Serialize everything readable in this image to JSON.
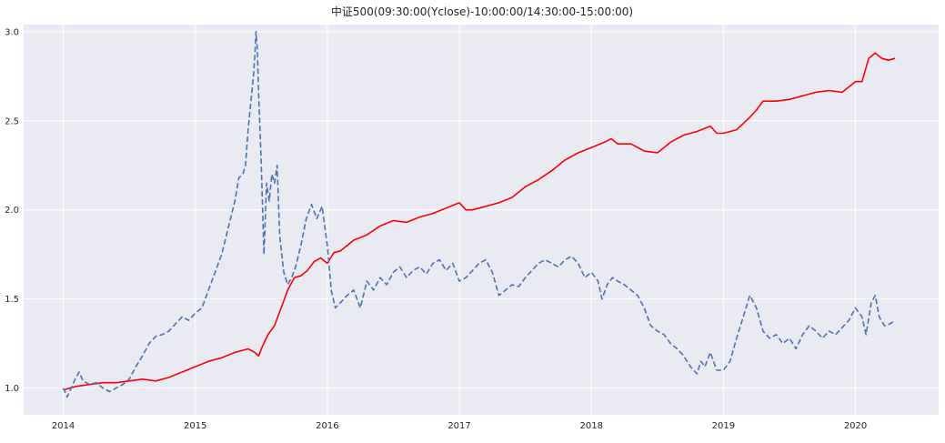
{
  "chart_data": {
    "type": "line",
    "title": "中证500(09:30:00(Yclose)-10:00:00/14:30:00-15:00:00)",
    "xlabel": "",
    "ylabel": "",
    "x_ticks": [
      "2014",
      "2015",
      "2016",
      "2017",
      "2018",
      "2019",
      "2020"
    ],
    "y_ticks": [
      "1.0",
      "1.5",
      "2.0",
      "2.5",
      "3.0"
    ],
    "xlim": [
      2013.7,
      2020.63
    ],
    "ylim": [
      0.85,
      3.04
    ],
    "grid": true,
    "legend": "none",
    "style": {
      "background": "#eaeaf2",
      "grid_color": "#ffffff"
    },
    "series": [
      {
        "color": "#ff0000",
        "line_style": "solid",
        "x": [
          2014.0,
          2014.1,
          2014.2,
          2014.3,
          2014.4,
          2014.5,
          2014.6,
          2014.7,
          2014.8,
          2014.9,
          2015.0,
          2015.1,
          2015.2,
          2015.3,
          2015.4,
          2015.45,
          2015.48,
          2015.5,
          2015.55,
          2015.6,
          2015.65,
          2015.7,
          2015.75,
          2015.8,
          2015.85,
          2015.9,
          2015.95,
          2016.0,
          2016.05,
          2016.1,
          2016.15,
          2016.2,
          2016.3,
          2016.4,
          2016.5,
          2016.6,
          2016.7,
          2016.8,
          2016.9,
          2017.0,
          2017.05,
          2017.1,
          2017.2,
          2017.3,
          2017.4,
          2017.5,
          2017.6,
          2017.7,
          2017.8,
          2017.9,
          2018.0,
          2018.1,
          2018.15,
          2018.2,
          2018.3,
          2018.4,
          2018.5,
          2018.55,
          2018.6,
          2018.7,
          2018.8,
          2018.9,
          2018.95,
          2019.0,
          2019.1,
          2019.2,
          2019.25,
          2019.3,
          2019.4,
          2019.5,
          2019.6,
          2019.7,
          2019.8,
          2019.9,
          2020.0,
          2020.05,
          2020.1,
          2020.15,
          2020.2,
          2020.25,
          2020.3
        ],
        "y": [
          0.99,
          1.01,
          1.02,
          1.03,
          1.03,
          1.04,
          1.05,
          1.04,
          1.06,
          1.09,
          1.12,
          1.15,
          1.17,
          1.2,
          1.22,
          1.2,
          1.18,
          1.22,
          1.3,
          1.35,
          1.45,
          1.55,
          1.62,
          1.63,
          1.66,
          1.71,
          1.73,
          1.7,
          1.76,
          1.77,
          1.8,
          1.83,
          1.86,
          1.91,
          1.94,
          1.93,
          1.96,
          1.98,
          2.01,
          2.04,
          2.0,
          2.0,
          2.02,
          2.04,
          2.07,
          2.13,
          2.17,
          2.22,
          2.28,
          2.32,
          2.35,
          2.38,
          2.4,
          2.37,
          2.37,
          2.33,
          2.32,
          2.35,
          2.38,
          2.42,
          2.44,
          2.47,
          2.43,
          2.43,
          2.45,
          2.52,
          2.56,
          2.61,
          2.61,
          2.62,
          2.64,
          2.66,
          2.67,
          2.66,
          2.72,
          2.72,
          2.85,
          2.88,
          2.85,
          2.84,
          2.85
        ]
      },
      {
        "color": "#4c72b0",
        "line_style": "dashed",
        "x": [
          2014.0,
          2014.03,
          2014.06,
          2014.09,
          2014.12,
          2014.15,
          2014.2,
          2014.25,
          2014.3,
          2014.35,
          2014.4,
          2014.45,
          2014.5,
          2014.55,
          2014.6,
          2014.65,
          2014.7,
          2014.75,
          2014.8,
          2014.85,
          2014.9,
          2014.95,
          2015.0,
          2015.05,
          2015.1,
          2015.15,
          2015.2,
          2015.25,
          2015.3,
          2015.33,
          2015.36,
          2015.38,
          2015.4,
          2015.42,
          2015.44,
          2015.45,
          2015.46,
          2015.47,
          2015.48,
          2015.5,
          2015.52,
          2015.54,
          2015.56,
          2015.58,
          2015.6,
          2015.62,
          2015.64,
          2015.67,
          2015.7,
          2015.73,
          2015.76,
          2015.8,
          2015.84,
          2015.88,
          2015.92,
          2015.96,
          2016.0,
          2016.03,
          2016.06,
          2016.1,
          2016.15,
          2016.2,
          2016.25,
          2016.3,
          2016.35,
          2016.4,
          2016.45,
          2016.5,
          2016.55,
          2016.6,
          2016.65,
          2016.7,
          2016.75,
          2016.8,
          2016.85,
          2016.9,
          2016.95,
          2017.0,
          2017.05,
          2017.1,
          2017.15,
          2017.2,
          2017.25,
          2017.3,
          2017.35,
          2017.4,
          2017.45,
          2017.5,
          2017.55,
          2017.6,
          2017.65,
          2017.7,
          2017.75,
          2017.8,
          2017.85,
          2017.9,
          2017.95,
          2018.0,
          2018.05,
          2018.08,
          2018.12,
          2018.16,
          2018.2,
          2018.25,
          2018.3,
          2018.35,
          2018.4,
          2018.45,
          2018.5,
          2018.55,
          2018.6,
          2018.65,
          2018.7,
          2018.75,
          2018.8,
          2018.83,
          2018.86,
          2018.9,
          2018.95,
          2019.0,
          2019.05,
          2019.1,
          2019.15,
          2019.2,
          2019.25,
          2019.3,
          2019.35,
          2019.4,
          2019.45,
          2019.5,
          2019.55,
          2019.6,
          2019.65,
          2019.7,
          2019.75,
          2019.8,
          2019.85,
          2019.9,
          2019.95,
          2020.0,
          2020.05,
          2020.08,
          2020.12,
          2020.15,
          2020.18,
          2020.22,
          2020.26,
          2020.3
        ],
        "y": [
          1.0,
          0.95,
          1.0,
          1.05,
          1.09,
          1.04,
          1.02,
          1.03,
          1.0,
          0.98,
          1.0,
          1.02,
          1.05,
          1.12,
          1.18,
          1.25,
          1.29,
          1.3,
          1.32,
          1.36,
          1.4,
          1.38,
          1.42,
          1.45,
          1.55,
          1.65,
          1.75,
          1.9,
          2.05,
          2.18,
          2.2,
          2.25,
          2.45,
          2.6,
          2.75,
          2.85,
          3.0,
          2.9,
          2.65,
          2.25,
          1.75,
          2.15,
          2.05,
          2.2,
          2.15,
          2.25,
          1.85,
          1.65,
          1.58,
          1.62,
          1.68,
          1.8,
          1.95,
          2.03,
          1.95,
          2.02,
          1.8,
          1.55,
          1.45,
          1.48,
          1.52,
          1.55,
          1.45,
          1.6,
          1.55,
          1.62,
          1.58,
          1.65,
          1.68,
          1.62,
          1.66,
          1.68,
          1.64,
          1.7,
          1.72,
          1.66,
          1.7,
          1.6,
          1.62,
          1.66,
          1.7,
          1.72,
          1.65,
          1.52,
          1.55,
          1.58,
          1.57,
          1.62,
          1.66,
          1.7,
          1.72,
          1.7,
          1.68,
          1.72,
          1.74,
          1.7,
          1.62,
          1.65,
          1.6,
          1.5,
          1.58,
          1.62,
          1.6,
          1.58,
          1.55,
          1.52,
          1.45,
          1.35,
          1.32,
          1.3,
          1.25,
          1.22,
          1.18,
          1.12,
          1.08,
          1.15,
          1.12,
          1.2,
          1.1,
          1.1,
          1.15,
          1.28,
          1.4,
          1.52,
          1.45,
          1.32,
          1.28,
          1.3,
          1.25,
          1.28,
          1.22,
          1.3,
          1.35,
          1.32,
          1.28,
          1.32,
          1.3,
          1.34,
          1.38,
          1.45,
          1.4,
          1.3,
          1.48,
          1.52,
          1.4,
          1.35,
          1.36,
          1.38
        ]
      }
    ]
  }
}
